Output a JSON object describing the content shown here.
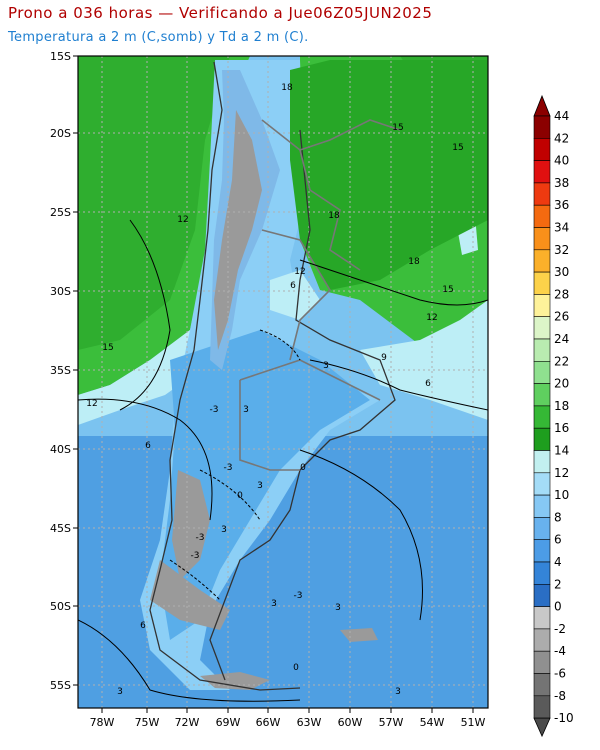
{
  "title": "Prono a 036 horas — Verificando a Jue06Z05JUN2025",
  "subtitle": "Temperatura a 2 m (C,somb) y Td a 2 m (C).",
  "lat_labels": [
    "15S",
    "20S",
    "25S",
    "30S",
    "35S",
    "40S",
    "45S",
    "50S",
    "55S"
  ],
  "lon_labels": [
    "78W",
    "75W",
    "72W",
    "69W",
    "66W",
    "63W",
    "60W",
    "57W",
    "54W",
    "51W"
  ],
  "colorbar": {
    "labels": [
      "44",
      "42",
      "40",
      "38",
      "36",
      "34",
      "32",
      "30",
      "28",
      "26",
      "24",
      "22",
      "20",
      "18",
      "16",
      "14",
      "12",
      "10",
      "8",
      "6",
      "4",
      "2",
      "0",
      "-2",
      "-4",
      "-6",
      "-8",
      "-10"
    ],
    "colors": [
      "#8b0000",
      "#c00000",
      "#e01010",
      "#ee3a10",
      "#f46a10",
      "#f9901a",
      "#fbb02a",
      "#fcd24a",
      "#fef29a",
      "#dcf5c8",
      "#b9ecb0",
      "#8fe08f",
      "#5fcf5f",
      "#35b835",
      "#1e9e1e",
      "#c2f0f0",
      "#a4dcf7",
      "#86c8f4",
      "#68b2ee",
      "#4c9ce6",
      "#3484d8",
      "#2a6ec4",
      "#c8c8c8",
      "#acacac",
      "#909090",
      "#747474",
      "#5a5a5a"
    ]
  },
  "contour_labels": [
    "18",
    "15",
    "15",
    "12",
    "18",
    "18",
    "12",
    "6",
    "15",
    "12",
    "15",
    "9",
    "3",
    "6",
    "12",
    "3",
    "-3",
    "6",
    "0",
    "3",
    "-3",
    "3",
    "-3",
    "0",
    "-3",
    "3",
    "3",
    "-3",
    "6",
    "0",
    "3",
    "3"
  ],
  "colors": {
    "green_dark": "#27a727",
    "green_mid": "#3bbe3b",
    "green_light": "#7bd87b",
    "blue_light": "#bdeef6",
    "blue_mid": "#8ccff6",
    "blue": "#5aaeea",
    "blue_dark": "#3b8fd8",
    "gray": "#9a9a9a"
  }
}
